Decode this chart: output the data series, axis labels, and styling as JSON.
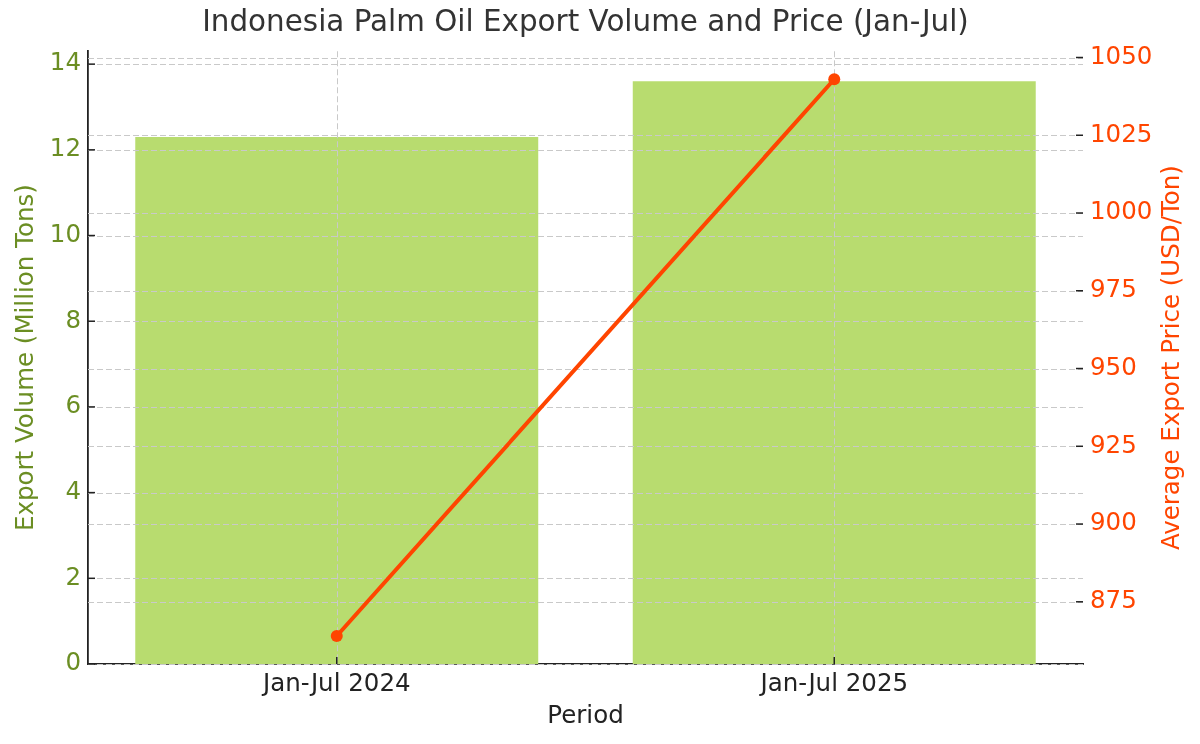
{
  "chart_data": {
    "type": "bar",
    "title": "Indonesia Palm Oil Export Volume and Price (Jan-Jul)",
    "xlabel": "Period",
    "ylabel": "Export Volume (Million Tons)",
    "y2label": "Average Export Price (USD/Ton)",
    "categories": [
      "Jan-Jul 2024",
      "Jan-Jul 2025"
    ],
    "series": [
      {
        "color": "#b8dc6f",
        "values": [
          12.3,
          13.6
        ]
      },
      {
        "type": "line",
        "axis": "y2",
        "color": "#ff4500",
        "values": [
          864,
          1043
        ]
      }
    ],
    "ylim": [
      0,
      14.3
    ],
    "yticks": [
      0,
      2,
      4,
      6,
      8,
      10,
      12,
      14
    ],
    "y2lim": [
      855,
      1052
    ],
    "y2ticks": [
      875,
      900,
      925,
      950,
      975,
      1000,
      1025,
      1050
    ],
    "grid": true,
    "marker": "circle",
    "line_style": "solid"
  }
}
